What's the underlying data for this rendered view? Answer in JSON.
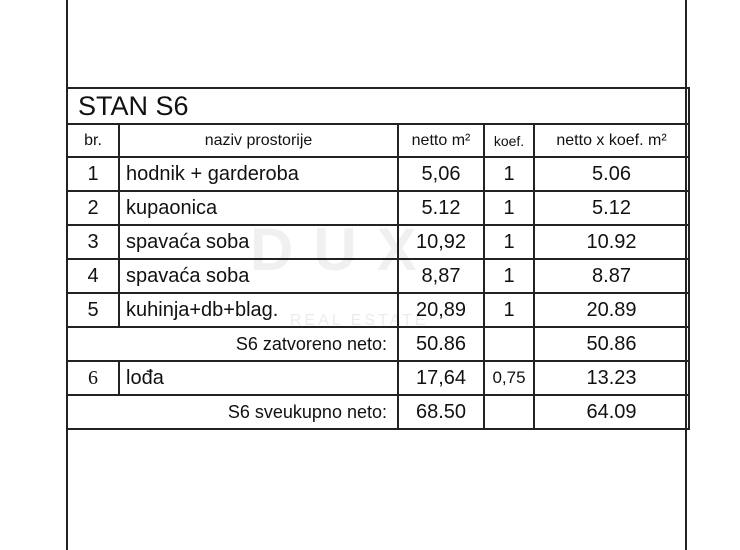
{
  "title": "STAN S6",
  "headers": [
    "br.",
    "naziv prostorije",
    "netto m²",
    "koef.",
    "netto x koef. m²"
  ],
  "rows": [
    {
      "no": "1",
      "name": "hodnik + garderoba",
      "netto": "5,06",
      "koef": "1",
      "total": "5.06"
    },
    {
      "no": "2",
      "name": "kupaonica",
      "netto": "5.12",
      "koef": "1",
      "total": "5.12"
    },
    {
      "no": "3",
      "name": "spavaća soba",
      "netto": "10,92",
      "koef": "1",
      "total": "10.92"
    },
    {
      "no": "4",
      "name": "spavaća soba",
      "netto": "8,87",
      "koef": "1",
      "total": "8.87"
    },
    {
      "no": "5",
      "name": "kuhinja+db+blag.",
      "netto": "20,89",
      "koef": "1",
      "total": "20.89"
    }
  ],
  "subtotal": {
    "label": "S6 zatvoreno neto:",
    "netto": "50.86",
    "total": "50.86"
  },
  "loggia": {
    "no": "6",
    "name": "lođa",
    "netto": "17,64",
    "koef": "0,75",
    "total": "13.23"
  },
  "grand_total": {
    "label": "S6 sveukupno neto:",
    "netto": "68.50",
    "total": "64.09"
  },
  "watermark": "DUX REAL ESTATE"
}
